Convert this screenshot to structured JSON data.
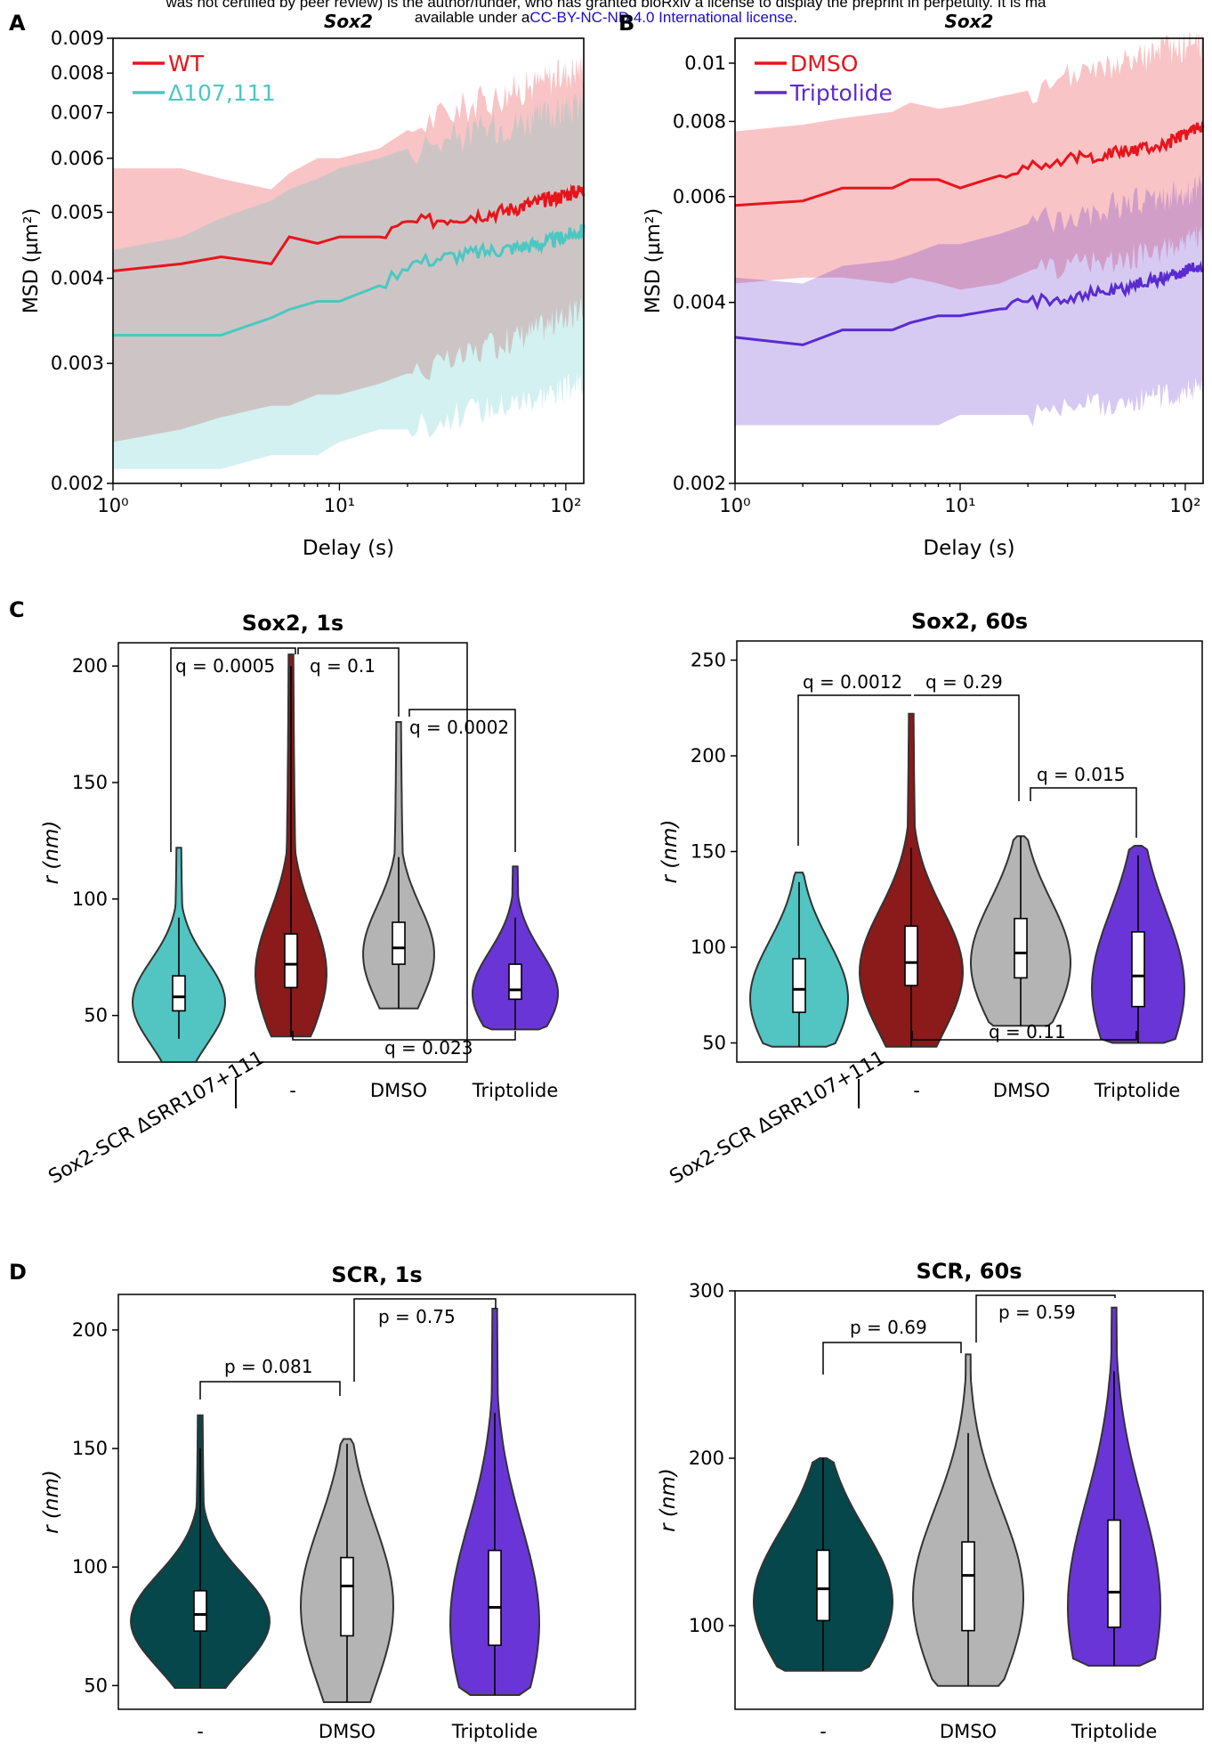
{
  "banner": {
    "line1": "was not certified by peer review) is the author/funder, who has granted bioRxiv a license to display the preprint in perpetuity. It is ma",
    "line2_prefix": "available under a",
    "line2_license": "CC-BY-NC-ND 4.0 International license",
    "line2_suffix": "."
  },
  "colors": {
    "wt": "#e8141c",
    "d107": "#4cc7c2",
    "dmso": "#e8141c",
    "trip": "#5a2bd0",
    "cyan_violin": "#52c4c2",
    "darkred_violin": "#8b1a1a",
    "gray_violin": "#b4b4b4",
    "purple_violin": "#6a35d6",
    "teal_violin": "#05474b"
  },
  "chart_data": [
    {
      "panel": "A",
      "type": "line",
      "title": "Sox2",
      "xlabel": "Delay (s)",
      "ylabel": "MSD (µm²)",
      "xscale": "log",
      "yscale": "log",
      "xlim": [
        1,
        120
      ],
      "ylim": [
        0.002,
        0.009
      ],
      "xticks": [
        "10⁰",
        "10¹",
        "10²"
      ],
      "yticks": [
        "0.002",
        "0.003",
        "0.004",
        "0.005",
        "0.006",
        "0.007",
        "0.008",
        "0.009"
      ],
      "legend": "top-left",
      "series": [
        {
          "name": "WT",
          "x": [
            1,
            2,
            3,
            5,
            6,
            8,
            10,
            15,
            20,
            30,
            50,
            80,
            120
          ],
          "y": [
            0.0041,
            0.0042,
            0.0043,
            0.0042,
            0.0046,
            0.0045,
            0.0046,
            0.0046,
            0.0048,
            0.0049,
            0.005,
            0.0052,
            0.0054
          ],
          "band_low": [
            0.0023,
            0.0024,
            0.0025,
            0.0026,
            0.0026,
            0.0027,
            0.0027,
            0.0028,
            0.0029,
            0.003,
            0.0032,
            0.0034,
            0.0036
          ],
          "band_high": [
            0.0058,
            0.0058,
            0.0056,
            0.0054,
            0.0057,
            0.006,
            0.006,
            0.0062,
            0.0066,
            0.007,
            0.0074,
            0.0078,
            0.0082
          ]
        },
        {
          "name": "Δ107,111",
          "x": [
            1,
            2,
            3,
            5,
            6,
            8,
            10,
            15,
            20,
            30,
            50,
            80,
            120
          ],
          "y": [
            0.0033,
            0.0033,
            0.0033,
            0.0035,
            0.0036,
            0.0037,
            0.0037,
            0.0039,
            0.0042,
            0.0043,
            0.0044,
            0.0045,
            0.0047
          ],
          "band_low": [
            0.0021,
            0.0021,
            0.0021,
            0.0022,
            0.0022,
            0.0022,
            0.0023,
            0.0024,
            0.0024,
            0.0025,
            0.0026,
            0.0027,
            0.0028
          ],
          "band_high": [
            0.0044,
            0.0046,
            0.0049,
            0.0052,
            0.0054,
            0.0056,
            0.0058,
            0.006,
            0.0062,
            0.0064,
            0.0067,
            0.0069,
            0.0072
          ]
        }
      ]
    },
    {
      "panel": "B",
      "type": "line",
      "title": "Sox2",
      "xlabel": "Delay (s)",
      "ylabel": "MSD (µm²)",
      "xscale": "log",
      "yscale": "log",
      "xlim": [
        1,
        120
      ],
      "ylim": [
        0.002,
        0.011
      ],
      "xticks": [
        "10⁰",
        "10¹",
        "10²"
      ],
      "yticks": [
        "0.002",
        "0.004",
        "0.006",
        "0.008",
        "0.01"
      ],
      "legend": "top-left",
      "series": [
        {
          "name": "DMSO",
          "x": [
            1,
            2,
            3,
            5,
            6,
            8,
            10,
            15,
            20,
            30,
            50,
            80,
            120
          ],
          "y": [
            0.0058,
            0.0059,
            0.0062,
            0.0062,
            0.0064,
            0.0064,
            0.0062,
            0.0065,
            0.0068,
            0.0069,
            0.0071,
            0.0073,
            0.0079
          ],
          "band_low": [
            0.0043,
            0.0044,
            0.0044,
            0.0043,
            0.0044,
            0.0043,
            0.0042,
            0.0043,
            0.0045,
            0.0046,
            0.0047,
            0.0049,
            0.0052
          ],
          "band_high": [
            0.0077,
            0.0079,
            0.0081,
            0.0083,
            0.0086,
            0.0084,
            0.0085,
            0.0088,
            0.009,
            0.0094,
            0.0099,
            0.0105,
            0.0108
          ]
        },
        {
          "name": "Triptolide",
          "x": [
            1,
            2,
            3,
            5,
            6,
            8,
            10,
            15,
            20,
            30,
            50,
            80,
            120
          ],
          "y": [
            0.0035,
            0.0034,
            0.0036,
            0.0036,
            0.0037,
            0.0038,
            0.0038,
            0.0039,
            0.004,
            0.0041,
            0.0042,
            0.0044,
            0.0046
          ],
          "band_low": [
            0.0025,
            0.0025,
            0.0025,
            0.0025,
            0.0025,
            0.0025,
            0.0026,
            0.0026,
            0.0026,
            0.0027,
            0.0027,
            0.0028,
            0.0029
          ],
          "band_high": [
            0.0044,
            0.0043,
            0.0046,
            0.0047,
            0.0048,
            0.005,
            0.005,
            0.0052,
            0.0054,
            0.0056,
            0.0058,
            0.006,
            0.0062
          ]
        }
      ]
    },
    {
      "panel": "C",
      "type": "violin",
      "title": "Sox2, 1s",
      "ylabel": "r (nm)",
      "ylim": [
        30,
        210
      ],
      "yticks": [
        50,
        100,
        150,
        200
      ],
      "categories": [
        "",
        "-",
        "DMSO",
        "Triptolide"
      ],
      "group_label": "Sox2-SCR ΔSRR107+111",
      "violins": [
        {
          "min": 30,
          "q1": 52,
          "median": 58,
          "q3": 67,
          "max": 122,
          "whisk_low": 40,
          "whisk_high": 92,
          "color": "#52c4c2"
        },
        {
          "min": 41,
          "q1": 62,
          "median": 72,
          "q3": 85,
          "max": 205,
          "whisk_low": 41,
          "whisk_high": 200,
          "color": "#8b1a1a"
        },
        {
          "min": 53,
          "q1": 72,
          "median": 79,
          "q3": 90,
          "max": 176,
          "whisk_low": 53,
          "whisk_high": 118,
          "color": "#b4b4b4"
        },
        {
          "min": 44,
          "q1": 57,
          "median": 61,
          "q3": 72,
          "max": 114,
          "whisk_low": 44,
          "whisk_high": 92,
          "color": "#6a35d6"
        }
      ],
      "annotations": [
        "q = 0.0005",
        "q = 0.1",
        "q = 0.0002",
        "q = 0.023"
      ]
    },
    {
      "panel": "C",
      "type": "violin",
      "title": "Sox2, 60s",
      "ylabel": "r (nm)",
      "ylim": [
        40,
        260
      ],
      "yticks": [
        50,
        100,
        150,
        200,
        250
      ],
      "categories": [
        "",
        "-",
        "DMSO",
        "Triptolide"
      ],
      "group_label": "Sox2-SCR ΔSRR107+111",
      "violins": [
        {
          "min": 48,
          "q1": 66,
          "median": 78,
          "q3": 94,
          "max": 139,
          "whisk_low": 48,
          "whisk_high": 134,
          "color": "#52c4c2"
        },
        {
          "min": 48,
          "q1": 80,
          "median": 92,
          "q3": 111,
          "max": 222,
          "whisk_low": 48,
          "whisk_high": 152,
          "color": "#8b1a1a"
        },
        {
          "min": 59,
          "q1": 84,
          "median": 97,
          "q3": 115,
          "max": 158,
          "whisk_low": 59,
          "whisk_high": 158,
          "color": "#b4b4b4"
        },
        {
          "min": 50,
          "q1": 69,
          "median": 85,
          "q3": 108,
          "max": 153,
          "whisk_low": 50,
          "whisk_high": 148,
          "color": "#6a35d6"
        }
      ],
      "annotations": [
        "q = 0.0012",
        "q = 0.29",
        "q = 0.015",
        "q = 0.11"
      ]
    },
    {
      "panel": "D",
      "type": "violin",
      "title": "SCR, 1s",
      "ylabel": "r (nm)",
      "ylim": [
        40,
        215
      ],
      "yticks": [
        50,
        100,
        150,
        200
      ],
      "categories": [
        "-",
        "DMSO",
        "Triptolide"
      ],
      "violins": [
        {
          "min": 49,
          "q1": 73,
          "median": 80,
          "q3": 90,
          "max": 164,
          "whisk_low": 49,
          "whisk_high": 150,
          "color": "#05474b"
        },
        {
          "min": 43,
          "q1": 71,
          "median": 92,
          "q3": 104,
          "max": 154,
          "whisk_low": 43,
          "whisk_high": 152,
          "color": "#b4b4b4"
        },
        {
          "min": 46,
          "q1": 67,
          "median": 83,
          "q3": 107,
          "max": 209,
          "whisk_low": 46,
          "whisk_high": 165,
          "color": "#6a35d6"
        }
      ],
      "annotations": [
        "p = 0.081",
        "p = 0.75"
      ]
    },
    {
      "panel": "D",
      "type": "violin",
      "title": "SCR, 60s",
      "ylabel": "r (nm)",
      "ylim": [
        50,
        300
      ],
      "yticks": [
        100,
        200,
        300
      ],
      "categories": [
        "-",
        "DMSO",
        "Triptolide"
      ],
      "violins": [
        {
          "min": 73,
          "q1": 103,
          "median": 122,
          "q3": 145,
          "max": 200,
          "whisk_low": 73,
          "whisk_high": 200,
          "color": "#05474b"
        },
        {
          "min": 64,
          "q1": 97,
          "median": 130,
          "q3": 150,
          "max": 262,
          "whisk_low": 64,
          "whisk_high": 215,
          "color": "#b4b4b4"
        },
        {
          "min": 76,
          "q1": 99,
          "median": 120,
          "q3": 163,
          "max": 290,
          "whisk_low": 76,
          "whisk_high": 252,
          "color": "#6a35d6"
        }
      ],
      "annotations": [
        "p = 0.69",
        "p = 0.59"
      ]
    }
  ],
  "panel_labels": [
    "A",
    "B",
    "C",
    "D"
  ]
}
